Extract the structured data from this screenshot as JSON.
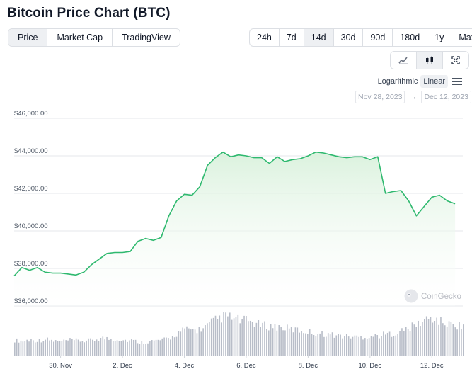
{
  "title": "Bitcoin Price Chart (BTC)",
  "view_tabs": [
    "Price",
    "Market Cap",
    "TradingView"
  ],
  "view_tabs_active": 0,
  "range_tabs": [
    "24h",
    "7d",
    "14d",
    "30d",
    "90d",
    "180d",
    "1y",
    "Max"
  ],
  "range_tabs_active": 2,
  "chart_type_icons": [
    "line-chart-icon",
    "candlestick-icon",
    "fullscreen-icon"
  ],
  "chart_type_active": 1,
  "scale": {
    "log_label": "Logarithmic",
    "linear_label": "Linear",
    "active": "Linear"
  },
  "date_range": {
    "from": "Nov 28, 2023",
    "arrow": "→",
    "to": "Dec 12, 2023"
  },
  "watermark": "CoinGecko",
  "colors": {
    "line": "#2fb96f",
    "fill_top": "#d9f1dc",
    "volume": "#b8bdc8",
    "grid": "#e5e7eb"
  },
  "chart_data": {
    "type": "area",
    "ylabels": [
      "$46,000.00",
      "$44,000.00",
      "$42,000.00",
      "$40,000.00",
      "$38,000.00",
      "$36,000.00"
    ],
    "yticks": [
      46000,
      44000,
      42000,
      40000,
      38000,
      36000
    ],
    "ylim": [
      36000,
      46000
    ],
    "xlabels": [
      "30. Nov",
      "2. Dec",
      "4. Dec",
      "6. Dec",
      "8. Dec",
      "10. Dec",
      "12. Dec"
    ],
    "x_domain": [
      "2023-11-28T12:00",
      "2023-12-13T00:00"
    ],
    "xlabel_dates": [
      "2023-11-30",
      "2023-12-02",
      "2023-12-04",
      "2023-12-06",
      "2023-12-08",
      "2023-12-10",
      "2023-12-12"
    ],
    "x": [
      "2023-11-28T12:00",
      "2023-11-28T18:00",
      "2023-11-29T00:00",
      "2023-11-29T06:00",
      "2023-11-29T12:00",
      "2023-11-29T18:00",
      "2023-11-30T00:00",
      "2023-11-30T06:00",
      "2023-11-30T12:00",
      "2023-11-30T18:00",
      "2023-12-01T00:00",
      "2023-12-01T06:00",
      "2023-12-01T12:00",
      "2023-12-01T18:00",
      "2023-12-02T00:00",
      "2023-12-02T06:00",
      "2023-12-02T12:00",
      "2023-12-02T18:00",
      "2023-12-03T00:00",
      "2023-12-03T06:00",
      "2023-12-03T12:00",
      "2023-12-03T18:00",
      "2023-12-04T00:00",
      "2023-12-04T06:00",
      "2023-12-04T12:00",
      "2023-12-04T18:00",
      "2023-12-05T00:00",
      "2023-12-05T06:00",
      "2023-12-05T12:00",
      "2023-12-05T18:00",
      "2023-12-06T00:00",
      "2023-12-06T06:00",
      "2023-12-06T12:00",
      "2023-12-06T18:00",
      "2023-12-07T00:00",
      "2023-12-07T06:00",
      "2023-12-07T12:00",
      "2023-12-07T18:00",
      "2023-12-08T00:00",
      "2023-12-08T06:00",
      "2023-12-08T12:00",
      "2023-12-08T18:00",
      "2023-12-09T00:00",
      "2023-12-09T06:00",
      "2023-12-09T12:00",
      "2023-12-09T18:00",
      "2023-12-10T00:00",
      "2023-12-10T06:00",
      "2023-12-10T12:00",
      "2023-12-10T18:00",
      "2023-12-11T00:00",
      "2023-12-11T06:00",
      "2023-12-11T12:00",
      "2023-12-11T18:00",
      "2023-12-12T00:00",
      "2023-12-12T06:00",
      "2023-12-12T12:00",
      "2023-12-12T18:00"
    ],
    "y": [
      37600,
      38050,
      37900,
      38050,
      37800,
      37750,
      37750,
      37700,
      37650,
      37800,
      38200,
      38500,
      38800,
      38850,
      38850,
      38900,
      39450,
      39600,
      39500,
      39650,
      40800,
      41600,
      41950,
      41900,
      42350,
      43500,
      43900,
      44200,
      43950,
      44050,
      44000,
      43900,
      43900,
      43600,
      43950,
      43700,
      43800,
      43850,
      44000,
      44200,
      44150,
      44050,
      43950,
      43900,
      43950,
      43950,
      43800,
      43950,
      42000,
      42100,
      42150,
      41600,
      40800,
      41300,
      41800,
      41900,
      41600,
      41450
    ],
    "volume": [
      0.35,
      0.33,
      0.36,
      0.34,
      0.37,
      0.33,
      0.32,
      0.35,
      0.34,
      0.33,
      0.36,
      0.4,
      0.38,
      0.37,
      0.35,
      0.34,
      0.3,
      0.32,
      0.34,
      0.36,
      0.42,
      0.55,
      0.6,
      0.58,
      0.62,
      0.75,
      0.85,
      0.9,
      0.82,
      0.8,
      0.78,
      0.7,
      0.68,
      0.66,
      0.64,
      0.6,
      0.58,
      0.55,
      0.52,
      0.5,
      0.48,
      0.46,
      0.44,
      0.43,
      0.42,
      0.44,
      0.45,
      0.48,
      0.5,
      0.55,
      0.62,
      0.7,
      0.8,
      0.85,
      0.78,
      0.72,
      0.7,
      0.68
    ],
    "grid": true
  }
}
